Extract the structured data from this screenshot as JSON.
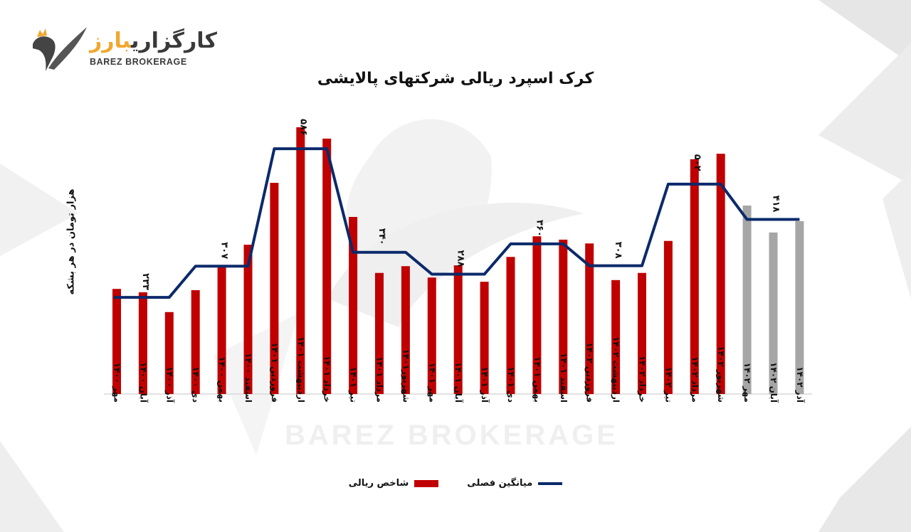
{
  "brand": {
    "name_fa_main": "کارگزاری",
    "name_fa_accent": "بارز",
    "name_en": "BAREZ BROKERAGE",
    "watermark": "BAREZ BROKERAGE",
    "accent_color": "#f0a830"
  },
  "header": {
    "title": "کرک اسپرد ریالی شرکتهای پالایشی"
  },
  "axis": {
    "ylabel": "هزار تومان در هر بشکه"
  },
  "legend": {
    "bar_label": "شاخص ریالی",
    "line_label": "میانگین فصلی"
  },
  "colors": {
    "bar": "#c00000",
    "bar_projected": "#a6a6a6",
    "line": "#0b2a6b"
  },
  "chart_data": {
    "type": "bar",
    "title": "کرک اسپرد ریالی شرکتهای پالایشی",
    "xlabel": "",
    "ylabel": "هزار تومان در هر بشکه",
    "ylim": [
      0,
      660
    ],
    "grid": false,
    "legend_position": "bottom",
    "categories": [
      "مهر ۱۴۰۰",
      "آبان ۱۴۰۰",
      "آذر ۱۴۰۰",
      "دی ۱۴۰۰",
      "بهمن ۱۴۰۰",
      "اسفند ۱۴۰۰",
      "فروردین ۱۴۰۱",
      "اردیبهشت ۱۴۰۱",
      "خرداد ۱۴۰۱",
      "تیر ۱۴۰۱",
      "مرداد ۱۴۰۱",
      "شهریور۱۴۰۱",
      "مهر ۱۴۰۱",
      "آبان ۱۴۰۱",
      "آذر ۱۴۰۱",
      "دی ۱۴۰۱",
      "بهمن ۱۴۰۱",
      "اسفند ۱۴۰۱",
      "فروردین ۱۴۰۲",
      "اردیبهشت ۱۴۰۲",
      "خرداد ۱۴۰۲",
      "تیر ۱۴۰۲",
      "مرداد ۱۴۰۲",
      "شهریور ۱۴۰۲",
      "مهر ۱۴۰۲",
      "آبان ۱۴۰۲",
      "آذر ۱۴۰۲"
    ],
    "series": [
      {
        "name": "شاخص ریالی",
        "type": "bar",
        "values": [
          253,
          245,
          198,
          250,
          304,
          358,
          505,
          637,
          610,
          424,
          291,
          307,
          280,
          309,
          270,
          329,
          378,
          370,
          361,
          274,
          291,
          367,
          561,
          574,
          451,
          387,
          414
        ],
        "projected_from_index": 24
      },
      {
        "name": "میانگین فصلی",
        "type": "line",
        "values": [
          233,
          233,
          233,
          307,
          307,
          307,
          586,
          586,
          586,
          340,
          340,
          340,
          288,
          288,
          288,
          360,
          360,
          360,
          308,
          308,
          308,
          502,
          502,
          502,
          418,
          418,
          418
        ],
        "data_labels": [
          {
            "index": 1,
            "text": "۲۳۳"
          },
          {
            "index": 4,
            "text": "۳۰۷"
          },
          {
            "index": 7,
            "text": "۵۸۶"
          },
          {
            "index": 10,
            "text": "۳۴۰"
          },
          {
            "index": 13,
            "text": "۲۸۸"
          },
          {
            "index": 16,
            "text": "۳۶۰"
          },
          {
            "index": 19,
            "text": "۳۰۸"
          },
          {
            "index": 22,
            "text": "۵۰۲"
          },
          {
            "index": 25,
            "text": "۴۱۸"
          }
        ]
      }
    ]
  }
}
